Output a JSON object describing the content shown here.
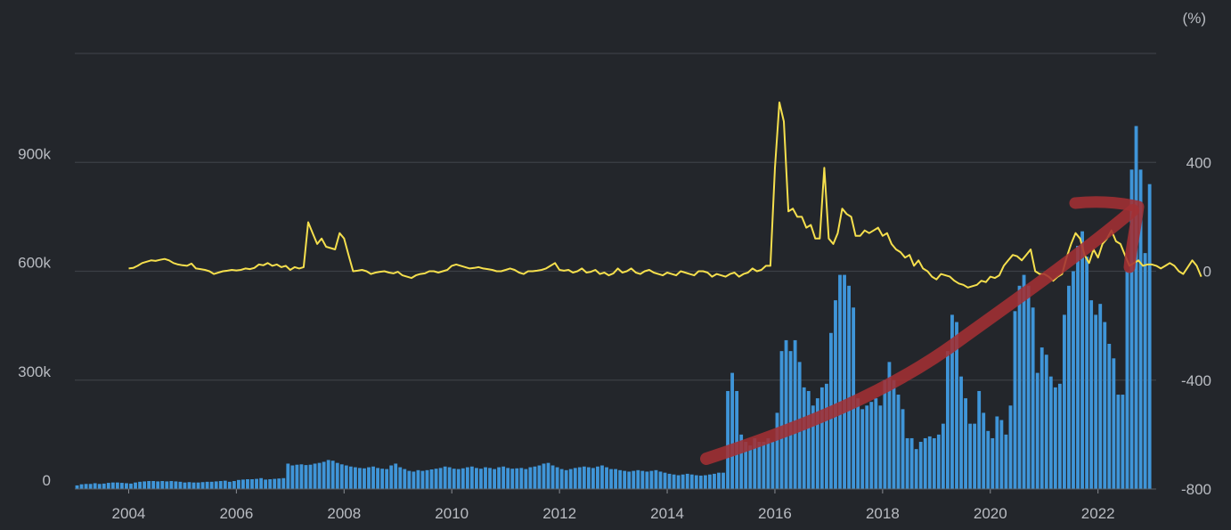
{
  "chart_data": {
    "type": "bar+line",
    "x_range": [
      2003.0,
      2023.08
    ],
    "left_axis": {
      "ticks": [
        "0",
        "300k",
        "600k",
        "900k"
      ],
      "tick_values": [
        0,
        300000,
        600000,
        900000
      ],
      "ylim": [
        0,
        1200000
      ]
    },
    "right_axis": {
      "unit": "(%)",
      "ticks": [
        "-800",
        "-400",
        "0",
        "400"
      ],
      "tick_values": [
        -800,
        -400,
        0,
        400
      ],
      "ylim": [
        -800,
        800
      ]
    },
    "x_ticks": [
      "2004",
      "2006",
      "2008",
      "2010",
      "2012",
      "2014",
      "2016",
      "2018",
      "2020",
      "2022"
    ],
    "x_tick_values": [
      2004,
      2006,
      2008,
      2010,
      2012,
      2014,
      2016,
      2018,
      2020,
      2022
    ],
    "grid": "horizontal",
    "colors": {
      "bars": "#3f95d8",
      "line": "#f5df4d",
      "arrow": "#a33033",
      "background": "#23262b",
      "grid": "#3b3f46",
      "text": "#b9bcc2"
    },
    "bar_series": {
      "axis": "left",
      "monthly_from": "2003-01",
      "values": [
        10000,
        13000,
        14000,
        14000,
        16000,
        14000,
        15000,
        17000,
        18000,
        18000,
        17000,
        16000,
        15000,
        18000,
        20000,
        21000,
        22000,
        22000,
        21000,
        22000,
        21000,
        22000,
        21000,
        20000,
        18000,
        19000,
        18000,
        18000,
        19000,
        20000,
        20000,
        21000,
        22000,
        23000,
        20000,
        22000,
        25000,
        26000,
        27000,
        27000,
        28000,
        30000,
        26000,
        27000,
        28000,
        29000,
        30000,
        70000,
        65000,
        67000,
        68000,
        66000,
        67000,
        70000,
        72000,
        75000,
        80000,
        78000,
        72000,
        68000,
        65000,
        62000,
        60000,
        58000,
        57000,
        60000,
        62000,
        58000,
        56000,
        55000,
        65000,
        70000,
        60000,
        55000,
        50000,
        48000,
        52000,
        50000,
        52000,
        54000,
        56000,
        58000,
        62000,
        60000,
        56000,
        55000,
        57000,
        60000,
        62000,
        58000,
        56000,
        60000,
        58000,
        55000,
        60000,
        62000,
        58000,
        56000,
        57000,
        58000,
        55000,
        60000,
        62000,
        65000,
        70000,
        72000,
        65000,
        60000,
        55000,
        52000,
        55000,
        58000,
        60000,
        62000,
        60000,
        58000,
        62000,
        65000,
        60000,
        55000,
        55000,
        52000,
        50000,
        48000,
        50000,
        52000,
        50000,
        48000,
        50000,
        52000,
        48000,
        45000,
        42000,
        40000,
        38000,
        40000,
        42000,
        40000,
        38000,
        37000,
        38000,
        40000,
        42000,
        45000,
        45000,
        270000,
        320000,
        270000,
        150000,
        130000,
        120000,
        140000,
        130000,
        130000,
        140000,
        130000,
        210000,
        380000,
        410000,
        380000,
        410000,
        350000,
        280000,
        270000,
        230000,
        250000,
        280000,
        290000,
        430000,
        520000,
        590000,
        590000,
        560000,
        500000,
        250000,
        220000,
        230000,
        240000,
        250000,
        230000,
        300000,
        350000,
        300000,
        260000,
        220000,
        140000,
        140000,
        110000,
        130000,
        140000,
        145000,
        140000,
        150000,
        180000,
        380000,
        480000,
        460000,
        310000,
        250000,
        180000,
        180000,
        270000,
        210000,
        160000,
        140000,
        200000,
        190000,
        150000,
        230000,
        490000,
        560000,
        590000,
        560000,
        500000,
        320000,
        390000,
        370000,
        310000,
        280000,
        290000,
        480000,
        560000,
        600000,
        670000,
        710000,
        640000,
        520000,
        480000,
        510000,
        460000,
        400000,
        360000,
        260000,
        260000,
        600000,
        880000,
        1000000,
        880000,
        650000,
        840000
      ]
    },
    "line_series": {
      "axis": "right",
      "monthly_from": "2004-01",
      "values": [
        10,
        12,
        20,
        30,
        35,
        40,
        38,
        42,
        45,
        40,
        30,
        25,
        22,
        20,
        28,
        10,
        8,
        5,
        0,
        -10,
        -5,
        0,
        2,
        5,
        3,
        5,
        10,
        8,
        12,
        25,
        22,
        30,
        20,
        25,
        15,
        20,
        5,
        15,
        10,
        15,
        180,
        140,
        100,
        120,
        90,
        85,
        80,
        140,
        120,
        60,
        0,
        2,
        5,
        0,
        -10,
        -5,
        -2,
        0,
        -5,
        -8,
        -2,
        -15,
        -20,
        -25,
        -15,
        -10,
        -8,
        0,
        0,
        -5,
        0,
        5,
        20,
        25,
        20,
        15,
        10,
        12,
        15,
        10,
        8,
        5,
        0,
        0,
        5,
        10,
        5,
        -5,
        -10,
        0,
        0,
        2,
        5,
        10,
        20,
        30,
        5,
        2,
        5,
        -5,
        0,
        10,
        -5,
        -2,
        5,
        -10,
        -5,
        -15,
        -8,
        10,
        -5,
        0,
        10,
        -5,
        -10,
        0,
        5,
        -5,
        -10,
        -15,
        -5,
        -10,
        -15,
        0,
        -5,
        -10,
        -15,
        0,
        0,
        -5,
        -20,
        -10,
        -15,
        -20,
        -10,
        -5,
        -20,
        -10,
        -5,
        10,
        0,
        5,
        20,
        20,
        380,
        620,
        550,
        220,
        230,
        200,
        200,
        160,
        170,
        120,
        120,
        380,
        120,
        100,
        140,
        230,
        210,
        200,
        130,
        130,
        150,
        140,
        150,
        160,
        130,
        140,
        100,
        80,
        70,
        50,
        60,
        20,
        40,
        10,
        0,
        -20,
        -30,
        -10,
        -15,
        -20,
        -35,
        -45,
        -50,
        -60,
        -55,
        -50,
        -35,
        -40,
        -20,
        -25,
        -15,
        20,
        40,
        60,
        55,
        40,
        60,
        80,
        0,
        -10,
        -10,
        -20,
        -35,
        -20,
        -10,
        50,
        100,
        140,
        120,
        60,
        30,
        80,
        50,
        100,
        120,
        150,
        110,
        100,
        60,
        20,
        30,
        40,
        20,
        25,
        25,
        20,
        10,
        20,
        30,
        20,
        0,
        -10,
        15,
        40,
        20,
        -20
      ]
    },
    "annotation": {
      "shape": "hand-drawn upward arrow"
    }
  },
  "right_axis_unit": "(%)"
}
